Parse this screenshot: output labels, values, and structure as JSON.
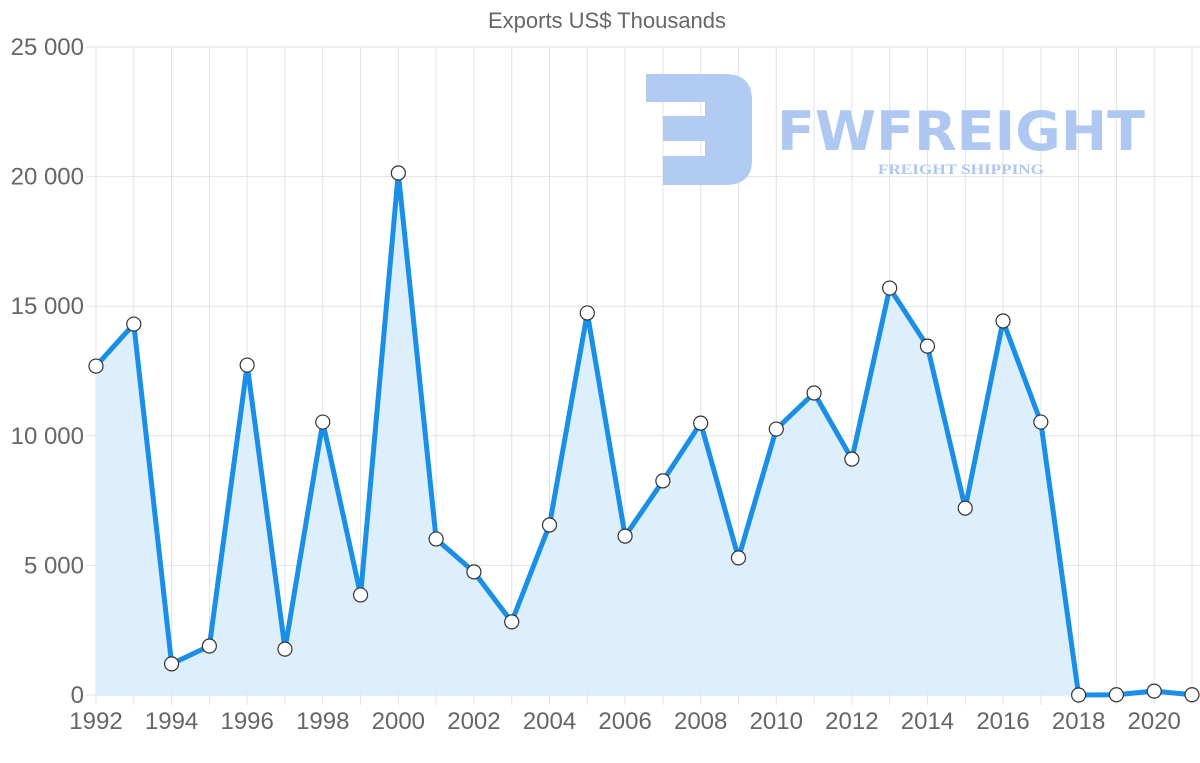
{
  "chart_data": {
    "type": "area",
    "title": "Exports US$ Thousands",
    "xlabel": "",
    "ylabel": "",
    "ylim": [
      0,
      25000
    ],
    "yticks": [
      "0",
      "5 000",
      "10 000",
      "15 000",
      "20 000",
      "25 000"
    ],
    "xticks": [
      "1992",
      "1994",
      "1996",
      "1998",
      "2000",
      "2002",
      "2004",
      "2006",
      "2008",
      "2010",
      "2012",
      "2014",
      "2016",
      "2018",
      "2020"
    ],
    "grid": true,
    "legend": null,
    "x": [
      1992,
      1993,
      1994,
      1995,
      1996,
      1997,
      1998,
      1999,
      2000,
      2001,
      2002,
      2003,
      2004,
      2005,
      2006,
      2007,
      2008,
      2009,
      2010,
      2011,
      2012,
      2013,
      2014,
      2015,
      2016,
      2017,
      2018,
      2019,
      2020,
      2021
    ],
    "series": [
      {
        "name": "Exports US$ Thousands",
        "color": "#1a8fe8",
        "fill": "#d9ecfc",
        "values": [
          12690,
          14310,
          1200,
          1890,
          12730,
          1770,
          10530,
          3860,
          20140,
          6020,
          4750,
          2820,
          6560,
          14740,
          6130,
          8260,
          10490,
          5290,
          10260,
          11650,
          9100,
          15700,
          13460,
          7210,
          14430,
          10530,
          0,
          10,
          150,
          10
        ]
      }
    ]
  },
  "watermark": {
    "brand": "FWFREIGHT",
    "tagline": "FREIGHT SHIPPING",
    "color": "#aec8f2"
  }
}
